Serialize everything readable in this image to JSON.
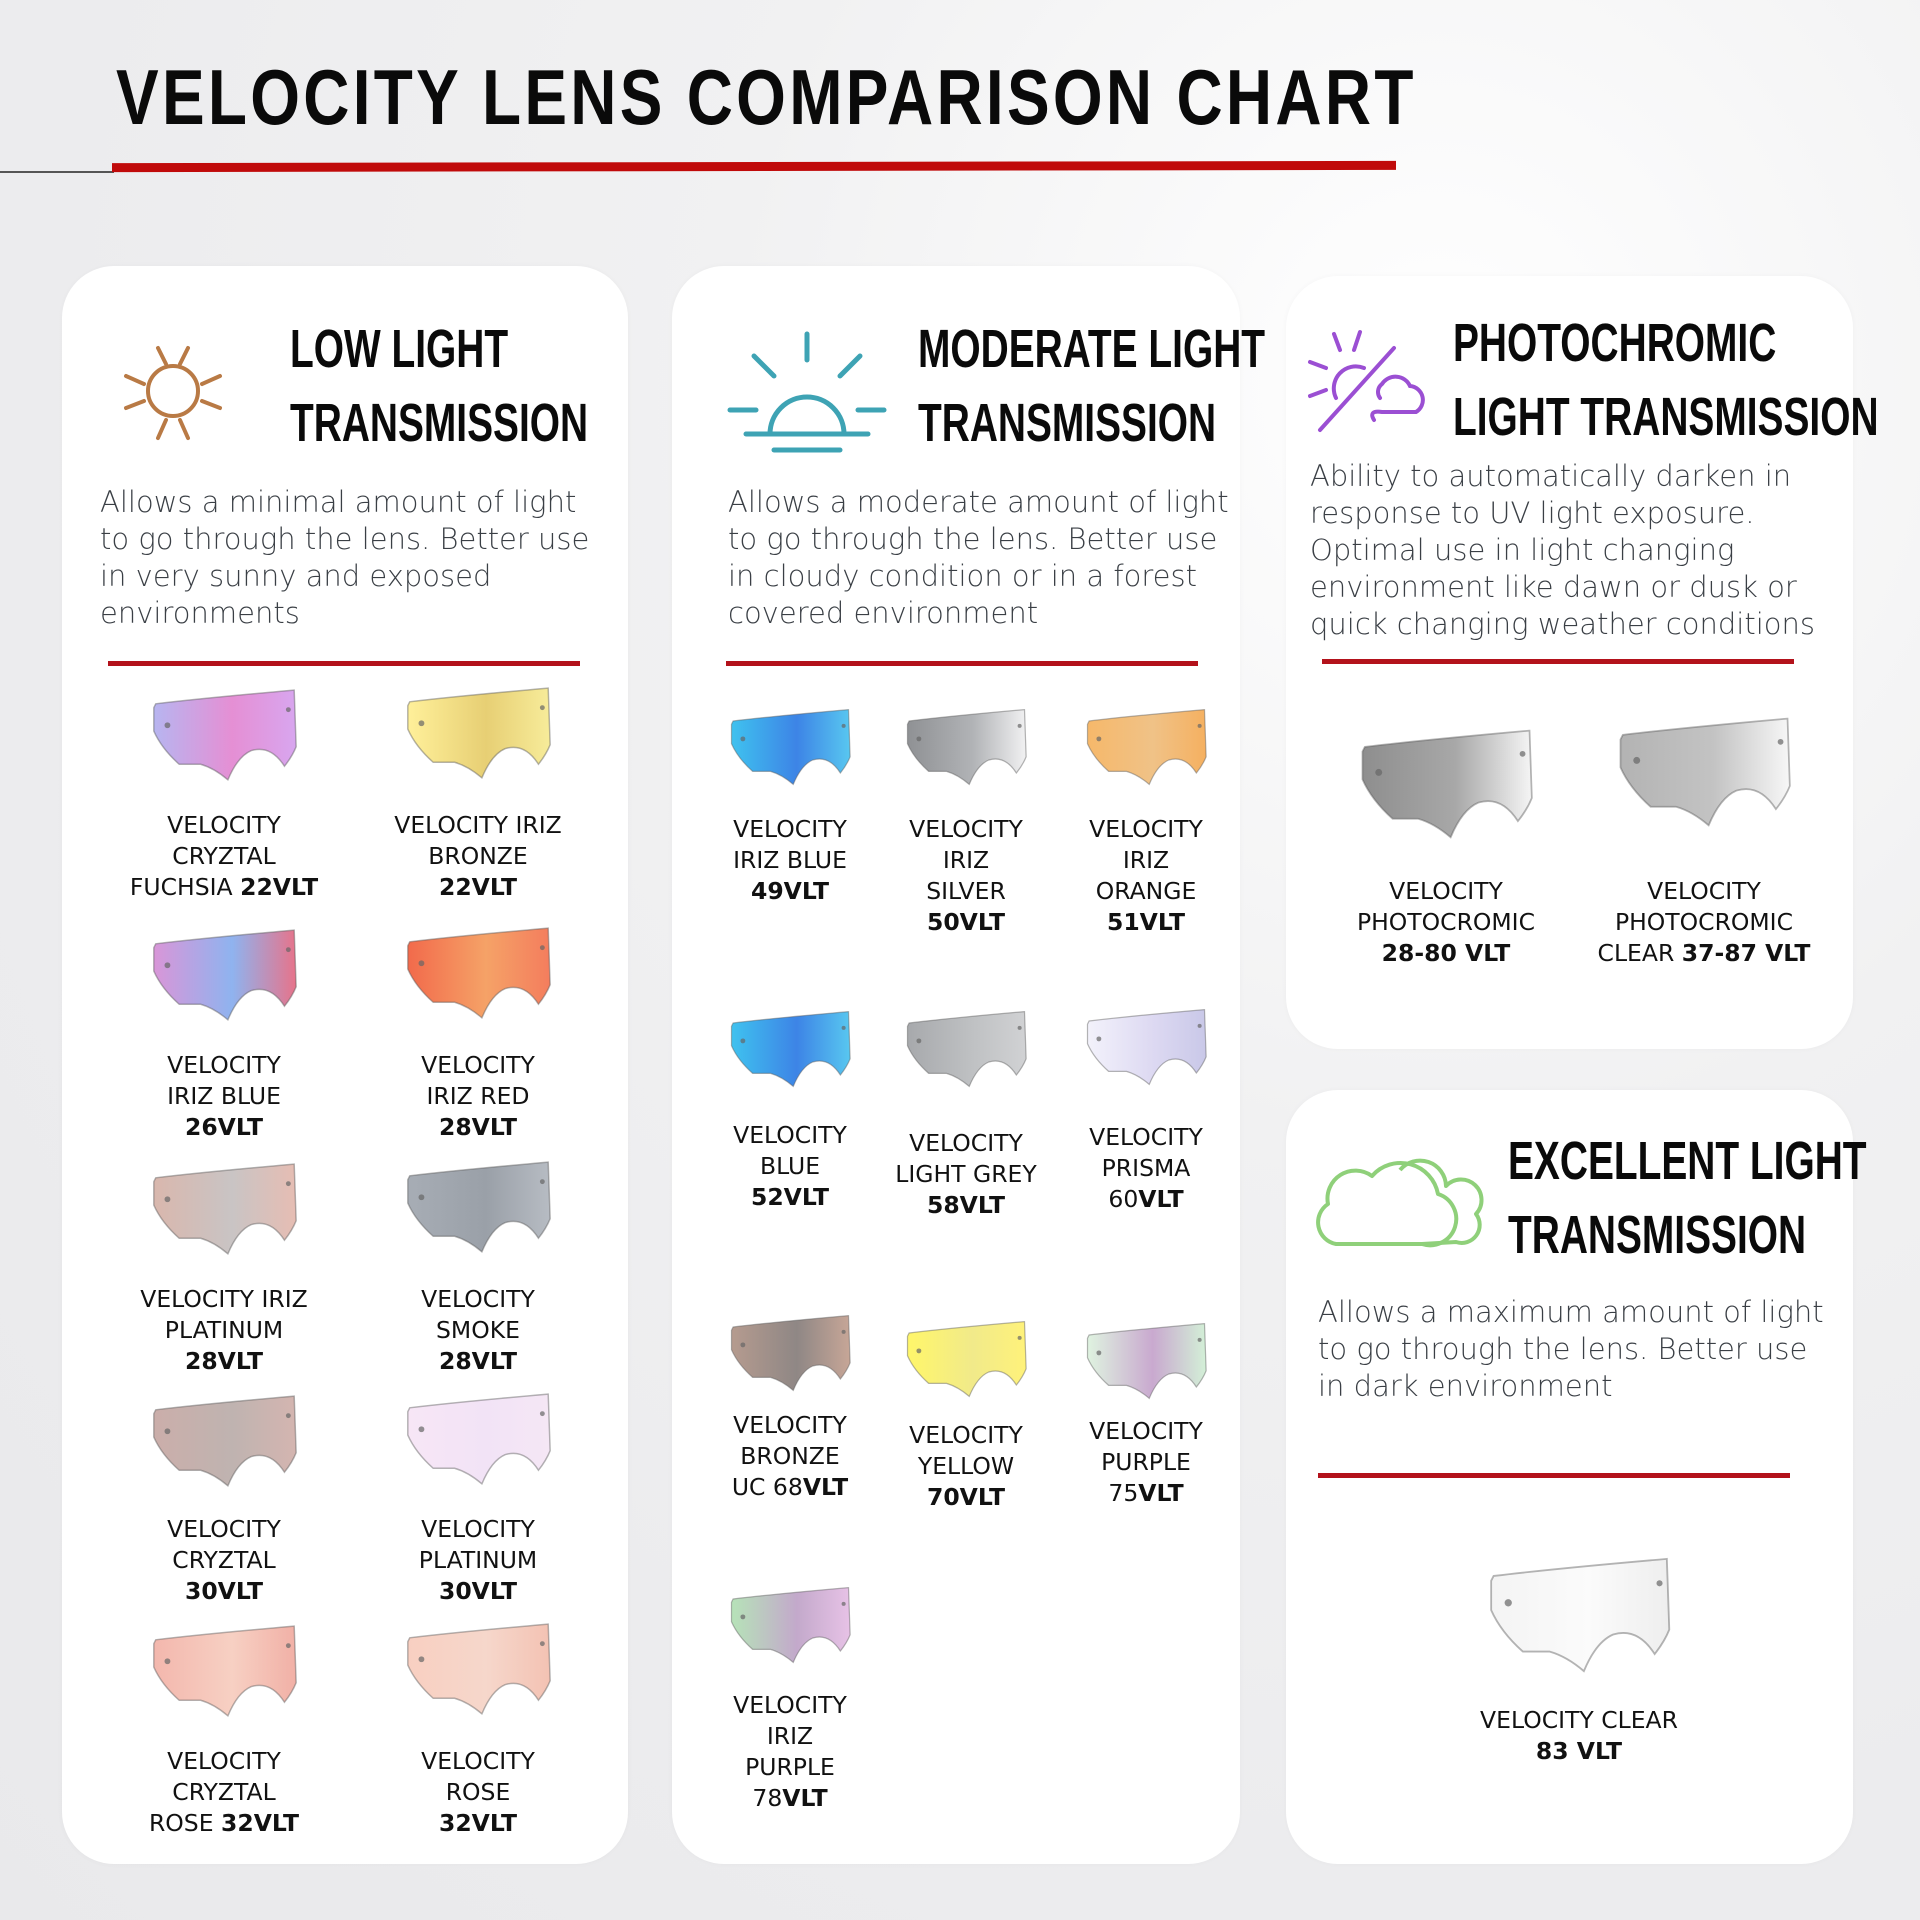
{
  "header": {
    "title": "VELOCITY LENS COMPARISON CHART"
  },
  "colors": {
    "accent_red": "#b3121b",
    "low_icon": "#b97a45",
    "moderate_icon": "#3ea3b4",
    "photochromic_icon": "#9b4fd3",
    "excellent_icon": "#8fd07a"
  },
  "sections": {
    "low": {
      "icon": "sun-icon",
      "title_line1": "LOW LIGHT",
      "title_line2": "TRANSMISSION",
      "description": "Allows a minimal amount of light to go through the lens. Better use in very sunny and exposed environments",
      "lenses": [
        {
          "name": "VELOCITY\nCRYZTAL\nFUCHSIA ",
          "vlt": "22VLT",
          "tint": [
            "#b7b5f0",
            "#e58fd4",
            "#d8a6ef"
          ]
        },
        {
          "name": "VELOCITY IRIZ\nBRONZE\n",
          "vlt": "22VLT",
          "tint": [
            "#fff09a",
            "#e7cf74",
            "#f7ec9a"
          ]
        },
        {
          "name": "VELOCITY\nIRIZ BLUE\n",
          "vlt": "26VLT",
          "tint": [
            "#d996d8",
            "#8fb3ef",
            "#e7738a"
          ]
        },
        {
          "name": "VELOCITY\nIRIZ RED\n",
          "vlt": "28VLT",
          "tint": [
            "#f26a4b",
            "#f5a267",
            "#f47d5d"
          ]
        },
        {
          "name": "VELOCITY IRIZ\nPLATINUM\n",
          "vlt": "28VLT",
          "tint": [
            "#d9b7ad",
            "#c9c4c4",
            "#e6bdb3"
          ]
        },
        {
          "name": "VELOCITY\nSMOKE\n",
          "vlt": "28VLT",
          "tint": [
            "#a7adb5",
            "#9aa0a8",
            "#b7bcc3"
          ]
        },
        {
          "name": "VELOCITY\nCRYZTAL\n",
          "vlt": "30VLT",
          "tint": [
            "#cbaeaa",
            "#bfb3b0",
            "#d4b5b0"
          ]
        },
        {
          "name": "VELOCITY\nPLATINUM\n",
          "vlt": "30VLT",
          "tint": [
            "#f7e6f6",
            "#f2e3f6",
            "#f5e7f5"
          ]
        },
        {
          "name": "VELOCITY\nCRYZTAL\nROSE ",
          "vlt": "32VLT",
          "tint": [
            "#f3b7ad",
            "#f7d0c3",
            "#f1b0a6"
          ]
        },
        {
          "name": "VELOCITY\nROSE\n",
          "vlt": "32VLT",
          "tint": [
            "#f8cfc1",
            "#f6d7cb",
            "#f3c2b3"
          ]
        }
      ]
    },
    "moderate": {
      "icon": "sunrise-icon",
      "title_line1": "MODERATE LIGHT",
      "title_line2": "TRANSMISSION",
      "description": "Allows a moderate amount of light to go through the lens. Better use in cloudy condition or in a forest covered environment",
      "lenses": [
        {
          "name": "VELOCITY\nIRIZ BLUE\n",
          "vlt": "49VLT",
          "tint": [
            "#3fc2ef",
            "#3d84e6",
            "#58c7f0"
          ]
        },
        {
          "name": "VELOCITY\nIRIZ\nSILVER\n",
          "vlt": "50VLT",
          "tint": [
            "#8f9194",
            "#b1b3b6",
            "#f1f1f2"
          ]
        },
        {
          "name": "VELOCITY\nIRIZ\nORANGE\n",
          "vlt": "51VLT",
          "tint": [
            "#f6b86a",
            "#f0c287",
            "#f5b060"
          ]
        },
        {
          "name": "VELOCITY\nBLUE\n",
          "vlt": "52VLT",
          "tint": [
            "#3fc2ef",
            "#3d84e6",
            "#58c7f0"
          ]
        },
        {
          "name": "VELOCITY\nLIGHT GREY\n",
          "vlt": "58VLT",
          "tint": [
            "#a7a9ac",
            "#bfc1c3",
            "#d1d2d4"
          ]
        },
        {
          "name": "VELOCITY\nPRISMA\n60",
          "vlt": "VLT",
          "tint": [
            "#f3f2fb",
            "#ddd9f2",
            "#c9c8e8"
          ]
        },
        {
          "name": "VELOCITY\nBRONZE\nUC 68",
          "vlt": "VLT",
          "tint": [
            "#b59b8f",
            "#8f8785",
            "#c7a697"
          ]
        },
        {
          "name": "VELOCITY\nYELLOW\n",
          "vlt": "70VLT",
          "tint": [
            "#fff66a",
            "#f1ea8a",
            "#fff27a"
          ]
        },
        {
          "name": "VELOCITY\nPURPLE\n75",
          "vlt": "VLT",
          "tint": [
            "#dff3e0",
            "#c9a9cf",
            "#d3f0d7"
          ]
        },
        {
          "name": "VELOCITY\nIRIZ\nPURPLE\n78",
          "vlt": "VLT",
          "tint": [
            "#b6e3b8",
            "#c3a9cb",
            "#e7c2e6"
          ]
        }
      ]
    },
    "photochromic": {
      "icon": "sun-cloud-slash-icon",
      "title_line1": "PHOTOCHROMIC",
      "title_line2": "LIGHT TRANSMISSION",
      "description": "Ability to automatically darken in response to UV light exposure. Optimal use in light changing environment like dawn or dusk or quick changing weather conditions",
      "lenses": [
        {
          "name": "VELOCITY\nPHOTOCROMIC\n",
          "vlt": "28-80 VLT",
          "tint": [
            "#8e8e8e",
            "#a8a8a8",
            "#f5f5f5"
          ]
        },
        {
          "name": "VELOCITY\nPHOTOCROMIC\nCLEAR ",
          "vlt": "37-87 VLT",
          "tint": [
            "#b3b3b3",
            "#c3c3c3",
            "#f7f7f7"
          ]
        }
      ]
    },
    "excellent": {
      "icon": "cloud-icon",
      "title_line1": "EXCELLENT LIGHT",
      "title_line2": "TRANSMISSION",
      "description": "Allows a maximum amount of light to go through the lens. Better use in dark environment",
      "lenses": [
        {
          "name": "VELOCITY CLEAR\n",
          "vlt": "83 VLT",
          "tint": [
            "#f4f4f4",
            "#fbfbfb",
            "#eeeeee"
          ]
        }
      ]
    }
  }
}
